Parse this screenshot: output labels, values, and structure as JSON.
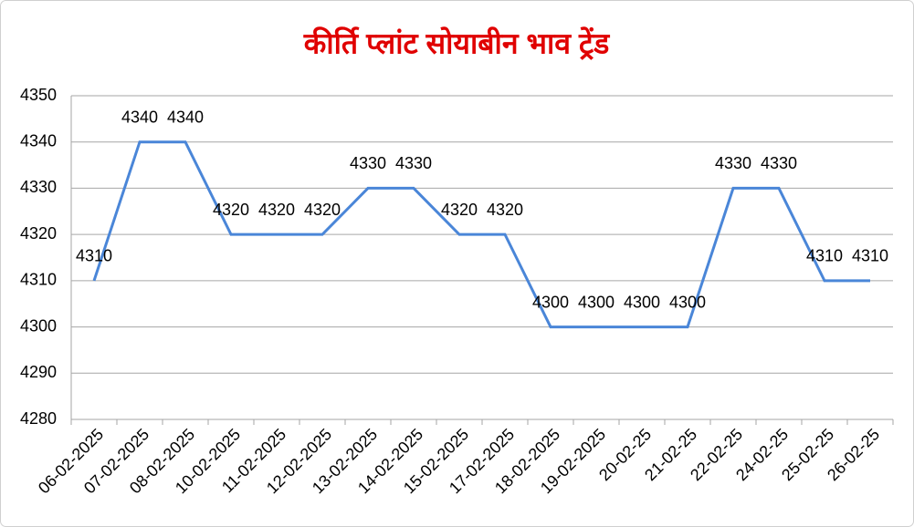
{
  "chart_data": {
    "type": "line",
    "title": "कीर्ति प्लांट सोयाबीन भाव ट्रेंड",
    "categories": [
      "06-02-2025",
      "07-02-2025",
      "08-02-2025",
      "10-02-2025",
      "11-02-2025",
      "12-02-2025",
      "13-02-2025",
      "14-02-2025",
      "15-02-2025",
      "17-02-2025",
      "18-02-2025",
      "19-02-2025",
      "20-02-25",
      "21-02-25",
      "22-02-25",
      "24-02-25",
      "25-02-25",
      "26-02-25"
    ],
    "series": [
      {
        "color": "#4a86d8",
        "values": [
          4310,
          4340,
          4340,
          4320,
          4320,
          4320,
          4330,
          4330,
          4320,
          4320,
          4300,
          4300,
          4300,
          4300,
          4330,
          4330,
          4310,
          4310
        ]
      }
    ],
    "ylim": [
      4280,
      4350
    ],
    "yticks": [
      4280,
      4290,
      4300,
      4310,
      4320,
      4330,
      4340,
      4350
    ],
    "grid": true
  }
}
